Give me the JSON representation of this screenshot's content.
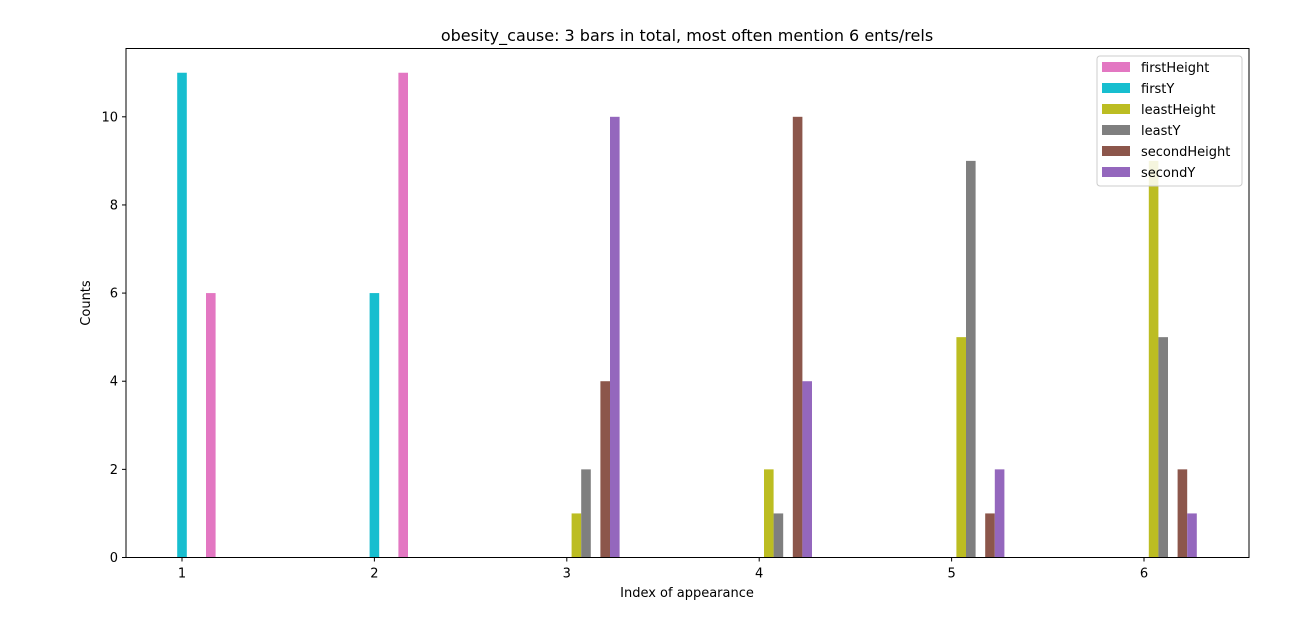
{
  "chart_data": {
    "type": "bar",
    "title": "obesity_cause: 3 bars in total, most often mention  6 ents/rels",
    "xlabel": "Index of appearance",
    "ylabel": "Counts",
    "categories": [
      "1",
      "2",
      "3",
      "4",
      "5",
      "6"
    ],
    "ylim": [
      0,
      11.55
    ],
    "yticks": [
      0,
      2,
      4,
      6,
      8,
      10
    ],
    "grid": false,
    "legend_position": "top-right",
    "series": [
      {
        "name": "firstHeight",
        "color": "#e377c2",
        "values": [
          6,
          11,
          0,
          0,
          0,
          0
        ]
      },
      {
        "name": "firstY",
        "color": "#17becf",
        "values": [
          11,
          6,
          0,
          0,
          0,
          0
        ]
      },
      {
        "name": "leastHeight",
        "color": "#bcbd22",
        "values": [
          0,
          0,
          1,
          2,
          5,
          9
        ]
      },
      {
        "name": "leastY",
        "color": "#7f7f7f",
        "values": [
          0,
          0,
          2,
          1,
          9,
          5
        ]
      },
      {
        "name": "secondHeight",
        "color": "#8c564b",
        "values": [
          0,
          0,
          4,
          10,
          1,
          2
        ]
      },
      {
        "name": "secondY",
        "color": "#9467bd",
        "values": [
          0,
          0,
          10,
          4,
          2,
          1
        ]
      }
    ],
    "bar_order": [
      "firstY",
      "leastHeight",
      "leastY",
      "firstHeight",
      "secondHeight",
      "secondY"
    ]
  }
}
